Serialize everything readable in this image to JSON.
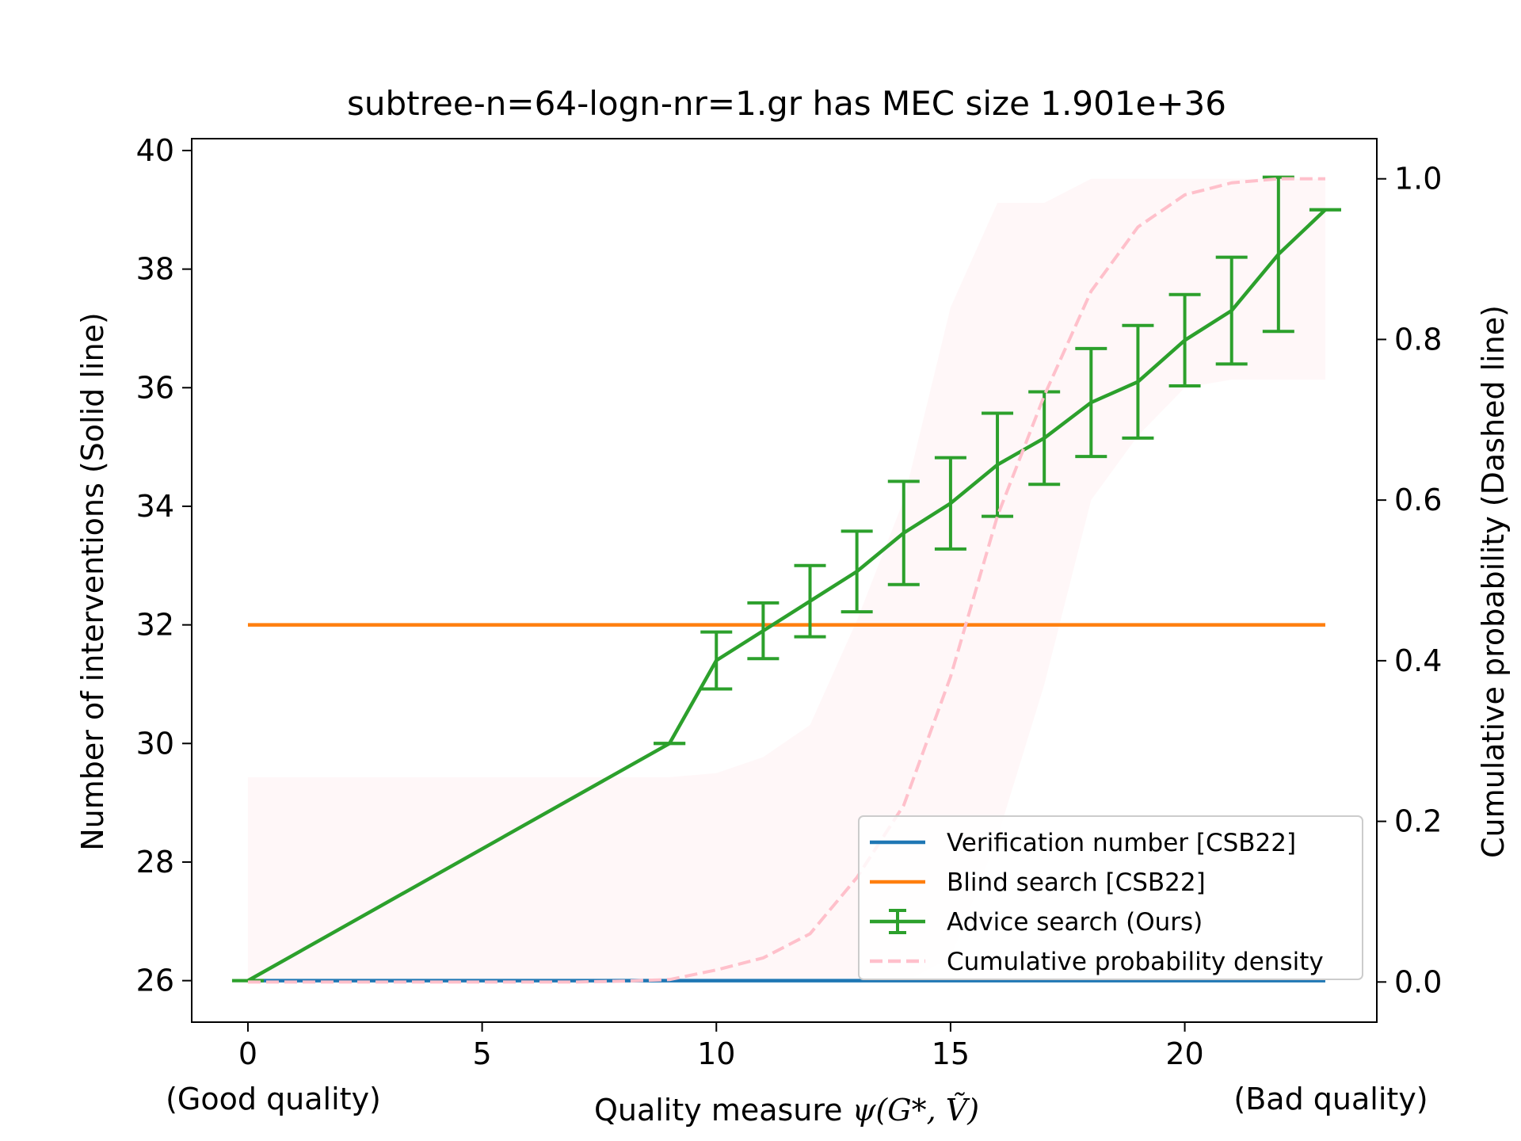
{
  "chart_data": {
    "type": "line",
    "title": "subtree-n=64-logn-nr=1.gr has MEC size 1.901e+36",
    "xlabel_prefix": "Quality measure ",
    "xlabel_math": "ψ(G*, Ṽ)",
    "x_note_left": "(Good quality)",
    "x_note_right": "(Bad quality)",
    "ylabel_left": "Number of interventions (Solid line)",
    "ylabel_right": "Cumulative probability (Dashed line)",
    "xlim": [
      -1.2,
      24.1
    ],
    "ylim_left": [
      25.3,
      40.2
    ],
    "ylim_right": [
      -0.05,
      1.05
    ],
    "x_ticks": [
      0,
      5,
      10,
      15,
      20
    ],
    "x_tick_labels": [
      "0",
      "5",
      "10",
      "15",
      "20"
    ],
    "y_left_ticks": [
      26,
      28,
      30,
      32,
      34,
      36,
      38,
      40
    ],
    "y_left_tick_labels": [
      "26",
      "28",
      "30",
      "32",
      "34",
      "36",
      "38",
      "40"
    ],
    "y_right_ticks": [
      0.0,
      0.2,
      0.4,
      0.6,
      0.8,
      1.0
    ],
    "y_right_tick_labels": [
      "0.0",
      "0.2",
      "0.4",
      "0.6",
      "0.8",
      "1.0"
    ],
    "legend_position": "lower-right",
    "series": [
      {
        "name": "Verification number [CSB22]",
        "color": "#1f77b4",
        "axis": "left",
        "style": "solid",
        "x": [
          0,
          23
        ],
        "y": [
          26,
          26
        ]
      },
      {
        "name": "Blind search [CSB22]",
        "color": "#ff7f0e",
        "axis": "left",
        "style": "solid",
        "x": [
          0,
          23
        ],
        "y": [
          32,
          32
        ]
      },
      {
        "name": "Advice search (Ours)",
        "color": "#2ca02c",
        "axis": "left",
        "style": "errorbar",
        "x": [
          0,
          9,
          10,
          11,
          12,
          13,
          14,
          15,
          16,
          17,
          18,
          19,
          20,
          21,
          22,
          23
        ],
        "y": [
          26.0,
          30.0,
          31.4,
          31.9,
          32.4,
          32.9,
          33.55,
          34.05,
          34.7,
          35.15,
          35.75,
          36.1,
          36.8,
          37.3,
          38.25,
          39.0
        ],
        "err": [
          0.0,
          0.0,
          0.48,
          0.47,
          0.6,
          0.68,
          0.87,
          0.77,
          0.87,
          0.78,
          0.91,
          0.95,
          0.77,
          0.9,
          1.3,
          0.0
        ]
      },
      {
        "name": "Cumulative probability density",
        "color": "#ffc0cb",
        "axis": "right",
        "style": "dashed",
        "x": [
          0,
          1,
          2,
          3,
          4,
          5,
          6,
          7,
          8,
          9,
          10,
          11,
          12,
          13,
          14,
          15,
          16,
          17,
          18,
          19,
          20,
          21,
          22,
          23
        ],
        "y": [
          0.0,
          0.0,
          0.0,
          0.0,
          0.0,
          0.0,
          0.0,
          0.0,
          0.001,
          0.003,
          0.015,
          0.03,
          0.06,
          0.13,
          0.22,
          0.38,
          0.58,
          0.73,
          0.86,
          0.94,
          0.98,
          0.995,
          1.0,
          1.0
        ],
        "band": {
          "x": [
            0,
            9,
            10,
            11,
            12,
            13,
            14,
            15,
            16,
            17,
            18,
            19,
            20,
            21,
            22,
            23
          ],
          "lower": [
            0.0,
            0.0,
            0.0,
            0.0,
            0.0,
            0.0,
            0.0,
            0.03,
            0.18,
            0.37,
            0.6,
            0.68,
            0.74,
            0.75,
            0.75,
            0.75
          ],
          "upper": [
            0.255,
            0.255,
            0.26,
            0.28,
            0.32,
            0.45,
            0.6,
            0.84,
            0.97,
            0.97,
            1.0,
            1.0,
            1.0,
            1.0,
            1.0,
            1.0
          ]
        }
      }
    ]
  }
}
